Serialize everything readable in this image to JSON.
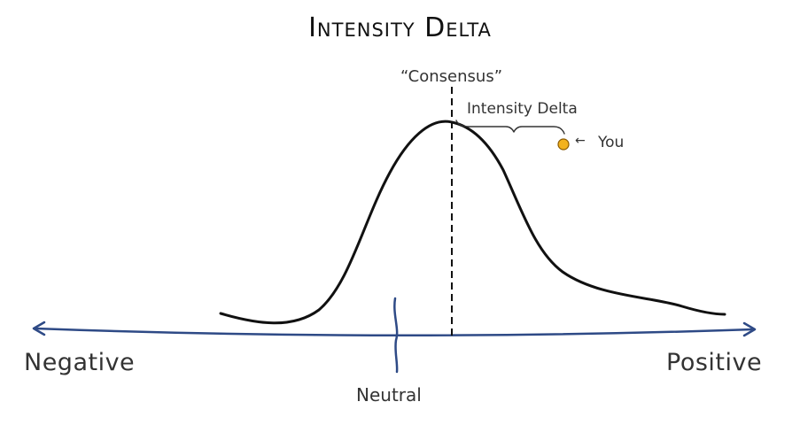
{
  "title": "Intensity Delta",
  "consensus_label": "“Consensus”",
  "intensity_delta_label": "Intensity Delta",
  "you_label": "You",
  "you_arrow": "←",
  "axis": {
    "negative_label": "Negative",
    "positive_label": "Positive",
    "neutral_label": "Neutral"
  },
  "colors": {
    "axis": "#2e4a86",
    "curve": "#111111",
    "you_marker": "#f2b21f"
  }
}
